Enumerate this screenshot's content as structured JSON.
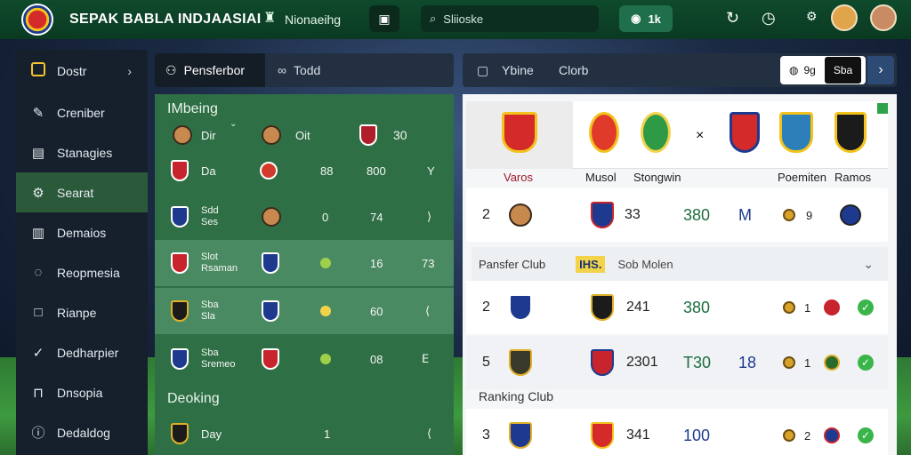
{
  "topbar": {
    "app_title": "SEPAK BABLA INDJAASIAI",
    "nav_label": "Nionaeihg",
    "search_placeholder": "Sliioske",
    "toggle_label": "1k"
  },
  "sidebar": {
    "items": [
      {
        "label": "Dostr",
        "icon": "badge-icon"
      },
      {
        "label": "Creniber",
        "icon": "edit-icon"
      },
      {
        "label": "Stanagies",
        "icon": "calendar-icon"
      },
      {
        "label": "Searat",
        "icon": "gear-icon",
        "active": true
      },
      {
        "label": "Demaios",
        "icon": "document-icon"
      },
      {
        "label": "Reopmesia",
        "icon": "chat-icon"
      },
      {
        "label": "Rianpe",
        "icon": "square-icon"
      },
      {
        "label": "Dedharpier",
        "icon": "check-circle-icon"
      },
      {
        "label": "Dnsopia",
        "icon": "tray-icon"
      },
      {
        "label": "Dedaldog",
        "icon": "info-icon"
      }
    ]
  },
  "middle": {
    "tabs": [
      {
        "label": "Pensferbor"
      },
      {
        "label": "Todd"
      }
    ],
    "section1_title": "IMbeing",
    "header_row": {
      "c1": "Dir",
      "c2": "Oit",
      "c3": "30"
    },
    "rows": [
      {
        "name": "Da",
        "c1": "88",
        "c2": "800",
        "c3": "Y"
      },
      {
        "name_a": "Sdd",
        "name_b": "Ses",
        "c1": "0",
        "c2": "74",
        "c3": "⟩"
      },
      {
        "name_a": "Slot",
        "name_b": "Rsaman",
        "c1": "",
        "c2": "16",
        "c3": "73"
      },
      {
        "name_a": "Sba",
        "name_b": "Sla",
        "c1": "",
        "c2": "60",
        "c3": "⟨"
      },
      {
        "name_a": "Sba",
        "name_b": "Sremeo",
        "c1": "",
        "c2": "08",
        "c3": "ⴹ"
      }
    ],
    "section2_title": "Deoking",
    "footer_row": {
      "name": "Day",
      "c1": "1",
      "c2": "⟨"
    }
  },
  "right": {
    "tabs": [
      {
        "label": "Ybine"
      },
      {
        "label": "Clorb"
      }
    ],
    "pill_text": "9g",
    "pill_dark": "Sba",
    "vs": "×",
    "columns": {
      "featured": "Varos",
      "c2": "Musol",
      "c3": "Stongwin",
      "c4": "Poemiten",
      "c5": "Ramos"
    },
    "rows": [
      {
        "rank": "2",
        "a": "33",
        "b": "380",
        "c": "M",
        "d": "9"
      },
      {
        "rank": "2",
        "a": "241",
        "b": "380",
        "c": "",
        "d": "1"
      },
      {
        "rank": "5",
        "a": "2301",
        "b": "T30",
        "c": "18",
        "d": "1"
      },
      {
        "rank": "3",
        "a": "341",
        "b": "100",
        "c": "",
        "d": "2"
      }
    ],
    "group1": {
      "label": "Pansfer Club",
      "tag": "IHS.",
      "sub": "Sob Molen"
    },
    "group2_label": "Ranking Club"
  },
  "colors": {
    "topbar": "#0f4a2c",
    "sidebar": "#16202c",
    "active": "#2b5a3a",
    "middle_panel": "#2f6f45",
    "accent_green": "#3ab54a"
  }
}
